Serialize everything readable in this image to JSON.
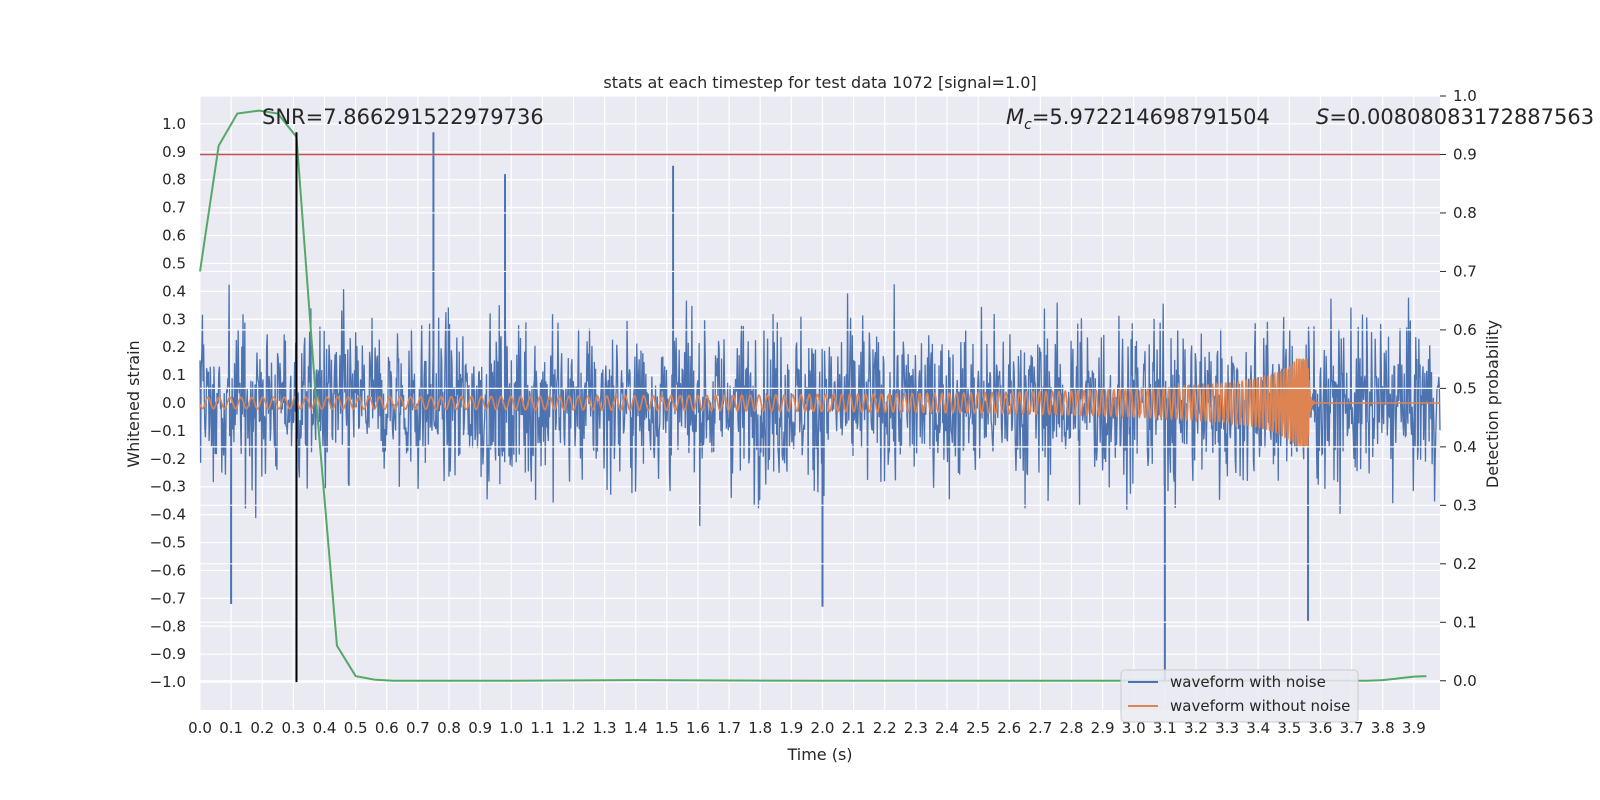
{
  "chart_data": {
    "type": "line",
    "title": "stats at each timestep for test data 1072 [signal=1.0]",
    "xlabel": "Time (s)",
    "ylabel_left": "Whitened strain",
    "ylabel_right": "Detection probability",
    "xlim": [
      0.0,
      3.984
    ],
    "ylim_left": [
      -1.1,
      1.1
    ],
    "ylim_right": [
      -0.05,
      1.0
    ],
    "x_ticks": [
      "0.0",
      "0.1",
      "0.2",
      "0.3",
      "0.4",
      "0.5",
      "0.6",
      "0.7",
      "0.8",
      "0.9",
      "1.0",
      "1.1",
      "1.2",
      "1.3",
      "1.4",
      "1.5",
      "1.6",
      "1.7",
      "1.8",
      "1.9",
      "2.0",
      "2.1",
      "2.2",
      "2.3",
      "2.4",
      "2.5",
      "2.6",
      "2.7",
      "2.8",
      "2.9",
      "3.0",
      "3.1",
      "3.2",
      "3.3",
      "3.4",
      "3.5",
      "3.6",
      "3.7",
      "3.8",
      "3.9"
    ],
    "y_ticks_left": [
      "1.0",
      "0.9",
      "0.8",
      "0.7",
      "0.6",
      "0.5",
      "0.4",
      "0.3",
      "0.2",
      "0.1",
      "0.0",
      "−0.1",
      "−0.2",
      "−0.3",
      "−0.4",
      "−0.5",
      "−0.6",
      "−0.7",
      "−0.8",
      "−0.9",
      "−1.0"
    ],
    "y_ticks_right": [
      "1.0",
      "0.9",
      "0.8",
      "0.7",
      "0.6",
      "0.5",
      "0.4",
      "0.3",
      "0.2",
      "0.1",
      "0.0"
    ],
    "annotations": {
      "snr": "SNR=7.866291522979736",
      "mc_symbol": "M",
      "mc_sub": "c",
      "mc_value": "=5.972214698791504",
      "s_symbol": "S",
      "s_value": "=0.00808083172887563"
    },
    "merger_time": 0.31,
    "threshold_probability": 0.9,
    "series": [
      {
        "name": "waveform with noise",
        "color": "#4c72b0",
        "axis": "left",
        "description_values": "noisy whitened strain, approx. uniform amplitude ±0.5 with spikes",
        "notable_peaks": [
          [
            0.75,
            0.97
          ],
          [
            0.98,
            0.82
          ],
          [
            1.52,
            0.85
          ],
          [
            3.1,
            -1.0
          ],
          [
            3.56,
            -0.78
          ],
          [
            0.1,
            -0.72
          ],
          [
            2.0,
            -0.73
          ]
        ]
      },
      {
        "name": "waveform without noise",
        "color": "#dd8452",
        "axis": "left",
        "chirp_start_amp": 0.02,
        "chirp_peak_time": 3.56,
        "chirp_peak_amp": 0.16
      },
      {
        "name": "detection probability",
        "color": "#55a868",
        "axis": "right",
        "x": [
          0.0,
          0.06,
          0.12,
          0.19,
          0.25,
          0.31,
          0.37,
          0.44,
          0.5,
          0.56,
          0.62,
          0.75,
          1.0,
          1.4,
          2.0,
          2.5,
          3.0,
          3.5,
          3.75,
          3.8,
          3.85,
          3.9,
          3.94
        ],
        "values": [
          0.7,
          0.915,
          0.97,
          0.975,
          0.97,
          0.93,
          0.5,
          0.06,
          0.008,
          0.002,
          0.0,
          0.0,
          0.0,
          0.001,
          0.0,
          0.0,
          0.0,
          0.0,
          0.0,
          0.001,
          0.004,
          0.007,
          0.008
        ]
      }
    ],
    "legend": {
      "position": "lower-right",
      "entries": [
        {
          "label": "waveform with noise",
          "color": "#4c72b0"
        },
        {
          "label": "waveform without noise",
          "color": "#dd8452"
        }
      ]
    },
    "style": {
      "plot_background": "#eaeaf2",
      "grid_color": "#ffffff",
      "threshold_color": "#c44e52",
      "marker_color": "#000000"
    }
  }
}
